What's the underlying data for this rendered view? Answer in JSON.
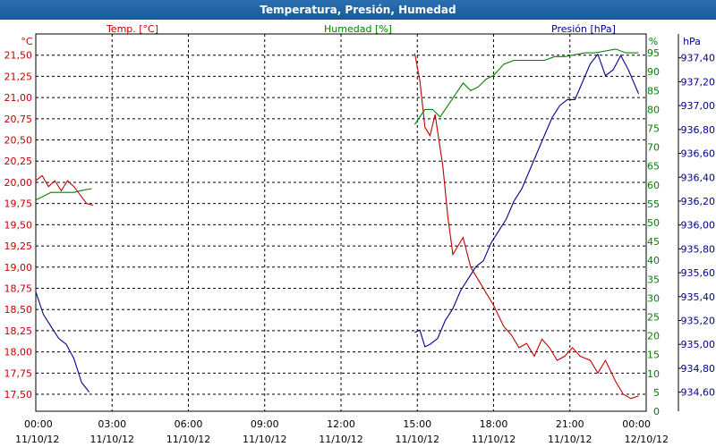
{
  "chart_data": {
    "type": "line",
    "title": "Temperatura, Presión, Humedad",
    "x_ticks": [
      {
        "time": "00:00",
        "date": "11/10/12"
      },
      {
        "time": "03:00",
        "date": "11/10/12"
      },
      {
        "time": "06:00",
        "date": "11/10/12"
      },
      {
        "time": "09:00",
        "date": "11/10/12"
      },
      {
        "time": "12:00",
        "date": "11/10/12"
      },
      {
        "time": "15:00",
        "date": "11/10/12"
      },
      {
        "time": "18:00",
        "date": "11/10/12"
      },
      {
        "time": "21:00",
        "date": "11/10/12"
      },
      {
        "time": "00:00",
        "date": "12/10/12"
      }
    ],
    "x_range_hours": [
      0,
      24
    ],
    "grid": true,
    "axes": {
      "temp": {
        "unit": "°C",
        "label": "Temp. [°C]",
        "color": "#c00000",
        "range": [
          17.3,
          21.75
        ],
        "ticks": [
          "17,50",
          "17,75",
          "18,00",
          "18,25",
          "18,50",
          "18,75",
          "19,00",
          "19,25",
          "19,50",
          "19,75",
          "20,00",
          "20,25",
          "20,50",
          "20,75",
          "21,00",
          "21,25",
          "21,50"
        ]
      },
      "hum": {
        "unit": "%",
        "label": "Humedad [%]",
        "color": "#008000",
        "range": [
          0,
          100
        ],
        "ticks": [
          "0",
          "5",
          "10",
          "15",
          "20",
          "25",
          "30",
          "35",
          "40",
          "45",
          "50",
          "55",
          "60",
          "65",
          "70",
          "75",
          "80",
          "85",
          "90",
          "95"
        ]
      },
      "pres": {
        "unit": "hPa",
        "label": "Presión [hPa]",
        "color": "#00008b",
        "range": [
          934.44,
          937.6
        ],
        "ticks": [
          "934,60",
          "934,80",
          "935,00",
          "935,20",
          "935,40",
          "935,60",
          "935,80",
          "936,00",
          "936,20",
          "936,40",
          "936,60",
          "936,80",
          "937,00",
          "937,20",
          "937,40"
        ]
      }
    },
    "series": [
      {
        "name": "Temp. [°C]",
        "axis": "temp",
        "segments": [
          [
            [
              0.0,
              20.02
            ],
            [
              0.25,
              20.08
            ],
            [
              0.5,
              19.95
            ],
            [
              0.75,
              20.02
            ],
            [
              1.0,
              19.9
            ],
            [
              1.25,
              20.02
            ],
            [
              1.5,
              19.95
            ],
            [
              1.75,
              19.85
            ],
            [
              2.0,
              19.75
            ],
            [
              2.25,
              19.73
            ]
          ],
          [
            [
              14.9,
              21.52
            ],
            [
              15.1,
              21.2
            ],
            [
              15.3,
              20.65
            ],
            [
              15.5,
              20.55
            ],
            [
              15.7,
              20.8
            ],
            [
              16.0,
              20.2
            ],
            [
              16.2,
              19.6
            ],
            [
              16.4,
              19.15
            ],
            [
              16.8,
              19.35
            ],
            [
              17.1,
              19.0
            ],
            [
              17.5,
              18.8
            ],
            [
              17.8,
              18.65
            ],
            [
              18.0,
              18.55
            ],
            [
              18.4,
              18.3
            ],
            [
              18.7,
              18.2
            ],
            [
              19.0,
              18.05
            ],
            [
              19.3,
              18.1
            ],
            [
              19.6,
              17.95
            ],
            [
              19.9,
              18.15
            ],
            [
              20.2,
              18.05
            ],
            [
              20.5,
              17.9
            ],
            [
              20.8,
              17.95
            ],
            [
              21.1,
              18.05
            ],
            [
              21.4,
              17.95
            ],
            [
              21.8,
              17.9
            ],
            [
              22.1,
              17.75
            ],
            [
              22.4,
              17.9
            ],
            [
              22.8,
              17.65
            ],
            [
              23.1,
              17.5
            ],
            [
              23.4,
              17.45
            ],
            [
              23.7,
              17.48
            ]
          ]
        ]
      },
      {
        "name": "Humedad [%]",
        "axis": "hum",
        "segments": [
          [
            [
              0.0,
              56
            ],
            [
              0.3,
              57
            ],
            [
              0.6,
              58
            ],
            [
              0.9,
              58
            ],
            [
              1.2,
              58
            ],
            [
              1.5,
              58
            ],
            [
              1.8,
              58.5
            ],
            [
              2.2,
              59
            ]
          ],
          [
            [
              14.9,
              76
            ],
            [
              15.1,
              78
            ],
            [
              15.3,
              80
            ],
            [
              15.6,
              80
            ],
            [
              15.9,
              78
            ],
            [
              16.2,
              81
            ],
            [
              16.5,
              84
            ],
            [
              16.8,
              87
            ],
            [
              17.1,
              85
            ],
            [
              17.4,
              86
            ],
            [
              17.7,
              88
            ],
            [
              18.0,
              89
            ],
            [
              18.4,
              92
            ],
            [
              18.8,
              93
            ],
            [
              19.2,
              93
            ],
            [
              19.6,
              93
            ],
            [
              20.0,
              93
            ],
            [
              20.4,
              94
            ],
            [
              20.8,
              94
            ],
            [
              21.2,
              94.5
            ],
            [
              21.6,
              95
            ],
            [
              22.0,
              95
            ],
            [
              22.4,
              95.5
            ],
            [
              22.8,
              96
            ],
            [
              23.2,
              95
            ],
            [
              23.7,
              95
            ]
          ]
        ]
      },
      {
        "name": "Presión [hPa]",
        "axis": "pres",
        "segments": [
          [
            [
              0.0,
              935.44
            ],
            [
              0.3,
              935.25
            ],
            [
              0.6,
              935.15
            ],
            [
              0.9,
              935.05
            ],
            [
              1.2,
              935.0
            ],
            [
              1.5,
              934.88
            ],
            [
              1.8,
              934.68
            ],
            [
              2.1,
              934.6
            ]
          ],
          [
            [
              14.9,
              935.1
            ],
            [
              15.1,
              935.12
            ],
            [
              15.3,
              934.98
            ],
            [
              15.5,
              935.0
            ],
            [
              15.8,
              935.05
            ],
            [
              16.1,
              935.2
            ],
            [
              16.4,
              935.3
            ],
            [
              16.7,
              935.45
            ],
            [
              17.0,
              935.55
            ],
            [
              17.3,
              935.65
            ],
            [
              17.6,
              935.7
            ],
            [
              17.9,
              935.85
            ],
            [
              18.2,
              935.95
            ],
            [
              18.5,
              936.05
            ],
            [
              18.8,
              936.2
            ],
            [
              19.1,
              936.3
            ],
            [
              19.4,
              936.45
            ],
            [
              19.7,
              936.6
            ],
            [
              20.0,
              936.75
            ],
            [
              20.3,
              936.9
            ],
            [
              20.6,
              937.0
            ],
            [
              20.9,
              937.05
            ],
            [
              21.2,
              937.05
            ],
            [
              21.5,
              937.2
            ],
            [
              21.8,
              937.35
            ],
            [
              22.1,
              937.43
            ],
            [
              22.4,
              937.25
            ],
            [
              22.7,
              937.3
            ],
            [
              23.0,
              937.42
            ],
            [
              23.3,
              937.3
            ],
            [
              23.7,
              937.1
            ]
          ]
        ]
      }
    ]
  }
}
